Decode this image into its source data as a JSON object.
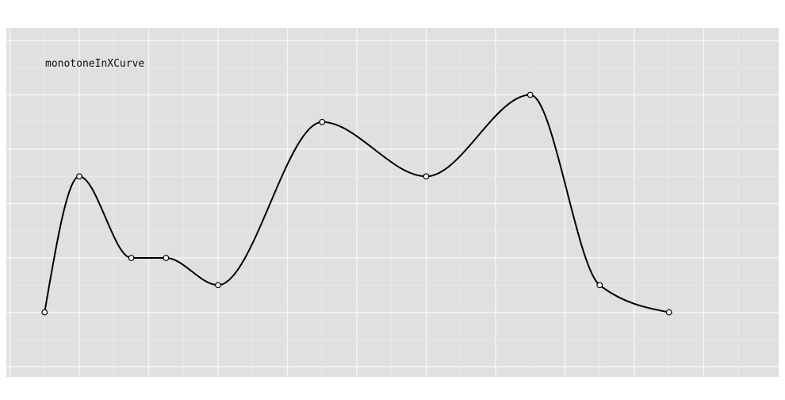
{
  "chart_data": {
    "type": "line",
    "curve_type_label": "monotoneInXCurve",
    "title": "",
    "xlabel": "",
    "ylabel": "",
    "xlim": [
      0,
      20
    ],
    "ylim": [
      0,
      12
    ],
    "grid": true,
    "legend": "none",
    "colors": {
      "background": "#e0dfe1",
      "grid_major": "#f6f6f7",
      "grid_minor": "#eaeaec",
      "line": "#000000",
      "marker_fill": "#ffffff",
      "marker_stroke": "#000000",
      "label": "#111111"
    },
    "series": [
      {
        "x": [
          1,
          2,
          3.5,
          4.5,
          6,
          9,
          12,
          15,
          17,
          19
        ],
        "y": [
          2,
          7,
          4,
          4,
          3,
          9,
          7,
          10,
          3,
          2
        ]
      }
    ]
  }
}
